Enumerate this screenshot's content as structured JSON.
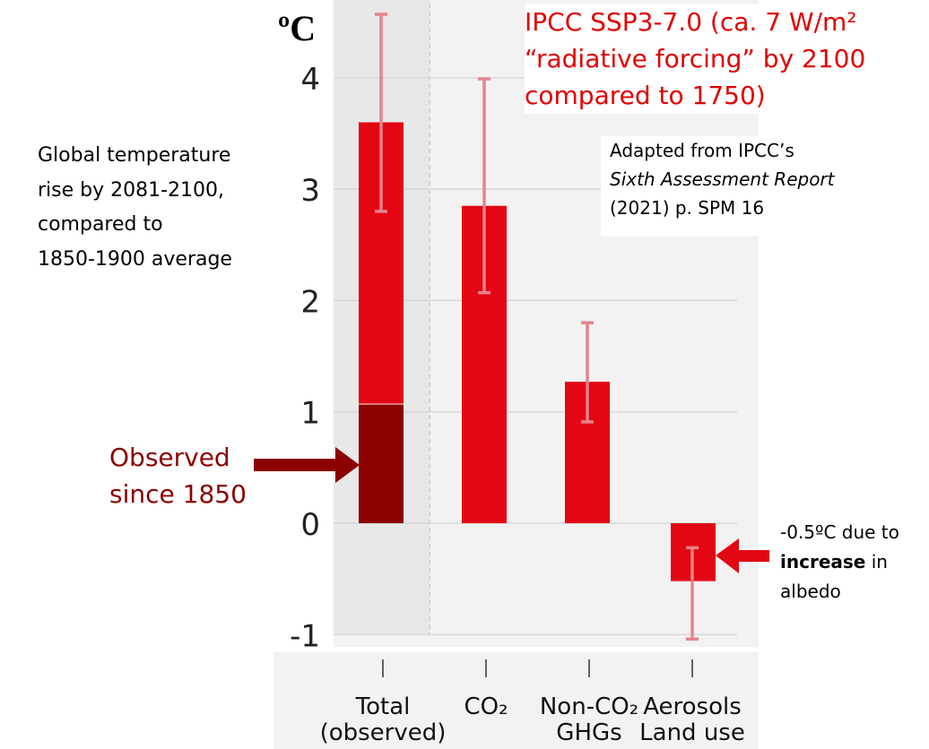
{
  "chart_data": {
    "type": "bar",
    "y_unit": "ºC",
    "categories": [
      {
        "line1": "Total",
        "line2": "(observed)"
      },
      {
        "line1": "CO₂",
        "line2": ""
      },
      {
        "line1": "Non-CO₂",
        "line2": "GHGs"
      },
      {
        "line1": "Aerosols",
        "line2": "Land use"
      }
    ],
    "values": [
      3.6,
      2.85,
      1.27,
      -0.52
    ],
    "error_low": [
      2.8,
      2.07,
      0.91,
      -1.04
    ],
    "error_high": [
      4.57,
      3.99,
      1.8,
      -0.22
    ],
    "observed_since_1850": 1.07,
    "yticks": [
      4,
      3,
      2,
      1,
      0,
      -1
    ],
    "ylim": [
      -1.15,
      4.7
    ],
    "grid": true,
    "colors": {
      "bar": "#e30613",
      "observed": "#8b0000",
      "error_bar": "#e8838b",
      "highlight_band": "#e8e8e8",
      "panel": "#f2f2f2",
      "arrow": "#e30613",
      "observed_arrow": "#8b0000"
    }
  },
  "unit_label": "ºC",
  "title": {
    "line1": "IPCC SSP3-7.0 (ca. 7 W/m²",
    "line2": "“radiative forcing” by 2100",
    "line3": "compared to 1750)"
  },
  "source_note": {
    "line1": "Adapted from IPCC’s",
    "line2": "Sixth Assessment Report",
    "line3": "(2021) p. SPM 16"
  },
  "description": {
    "line1": "Global temperature",
    "line2": "rise by 2081-2100,",
    "line3": "compared to",
    "line4": "1850-1900 average"
  },
  "observed_callout": {
    "line1": "Observed",
    "line2": "since 1850"
  },
  "albedo_callout": {
    "line1": "-0.5ºC due to",
    "line2_bold": "increase",
    "line2_rest": " in",
    "line3": "albedo"
  }
}
